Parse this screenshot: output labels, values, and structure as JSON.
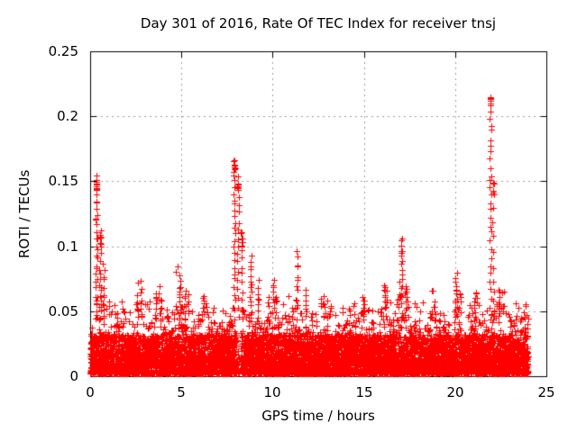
{
  "chart_data": {
    "type": "scatter",
    "title": "Day 301 of 2016, Rate Of TEC Index for receiver tnsj",
    "xlabel": "GPS time / hours",
    "ylabel": "ROTI / TECUs",
    "xlim": [
      0,
      25
    ],
    "ylim": [
      0,
      0.25
    ],
    "xticks": [
      0,
      5,
      10,
      15,
      20,
      25
    ],
    "yticks": [
      0,
      0.05,
      0.1,
      0.15,
      0.2,
      0.25
    ],
    "xtick_labels": [
      "0",
      "5",
      "10",
      "15",
      "20",
      "25"
    ],
    "ytick_labels": [
      "0",
      "0.05",
      "0.1",
      "0.15",
      "0.2",
      "0.25"
    ],
    "grid": true,
    "legend": "none",
    "marker": "plus-cross",
    "marker_color": "#ff0000",
    "grid_color": "#9c9c9c",
    "axis_color": "#000000",
    "background_color": "#ffffff",
    "data_time_range": [
      0,
      24
    ],
    "dense_band": {
      "description": "continuous dense scatter of ROTI values hugging 0 to ~0.03 TECUs for all 24 hours, with jagged moderate-density tops per half-hour bin",
      "solid_top": 0.03,
      "bin_hours": 0.5,
      "band_top": [
        0.05,
        0.06,
        0.046,
        0.052,
        0.048,
        0.062,
        0.05,
        0.058,
        0.054,
        0.066,
        0.058,
        0.05,
        0.058,
        0.052,
        0.048,
        0.052,
        0.045,
        0.055,
        0.056,
        0.048,
        0.06,
        0.052,
        0.056,
        0.052,
        0.048,
        0.052,
        0.044,
        0.044,
        0.048,
        0.052,
        0.048,
        0.048,
        0.058,
        0.062,
        0.056,
        0.048,
        0.048,
        0.054,
        0.048,
        0.05,
        0.056,
        0.048,
        0.052,
        0.056,
        0.058,
        0.052,
        0.044,
        0.05
      ],
      "gaps": [
        {
          "t": 6.35,
          "w": 0.12
        },
        {
          "t": 8.15,
          "w": 0.25
        }
      ]
    },
    "spikes": [
      {
        "t": 0.35,
        "peak": 0.153,
        "n": 30
      },
      {
        "t": 0.55,
        "peak": 0.112,
        "n": 14
      },
      {
        "t": 0.75,
        "peak": 0.085,
        "n": 10
      },
      {
        "t": 2.8,
        "peak": 0.072,
        "n": 9
      },
      {
        "t": 3.6,
        "peak": 0.065,
        "n": 7
      },
      {
        "t": 4.9,
        "peak": 0.076,
        "n": 10
      },
      {
        "t": 5.2,
        "peak": 0.065,
        "n": 7
      },
      {
        "t": 6.2,
        "peak": 0.062,
        "n": 6
      },
      {
        "t": 7.9,
        "peak": 0.168,
        "n": 26
      },
      {
        "t": 8.1,
        "peak": 0.155,
        "n": 18
      },
      {
        "t": 8.3,
        "peak": 0.112,
        "n": 12
      },
      {
        "t": 8.8,
        "peak": 0.091,
        "n": 14
      },
      {
        "t": 9.2,
        "peak": 0.073,
        "n": 8
      },
      {
        "t": 10.05,
        "peak": 0.074,
        "n": 9
      },
      {
        "t": 11.35,
        "peak": 0.095,
        "n": 12
      },
      {
        "t": 11.8,
        "peak": 0.065,
        "n": 7
      },
      {
        "t": 12.8,
        "peak": 0.06,
        "n": 6
      },
      {
        "t": 15.0,
        "peak": 0.06,
        "n": 6
      },
      {
        "t": 16.2,
        "peak": 0.066,
        "n": 9
      },
      {
        "t": 17.05,
        "peak": 0.105,
        "n": 16
      },
      {
        "t": 17.3,
        "peak": 0.07,
        "n": 8
      },
      {
        "t": 18.9,
        "peak": 0.058,
        "n": 6
      },
      {
        "t": 20.05,
        "peak": 0.078,
        "n": 12
      },
      {
        "t": 21.1,
        "peak": 0.06,
        "n": 6
      },
      {
        "t": 21.95,
        "peak": 0.215,
        "n": 30
      },
      {
        "t": 22.1,
        "peak": 0.15,
        "n": 10
      },
      {
        "t": 22.4,
        "peak": 0.066,
        "n": 8
      },
      {
        "t": 23.8,
        "peak": 0.056,
        "n": 4
      }
    ]
  }
}
